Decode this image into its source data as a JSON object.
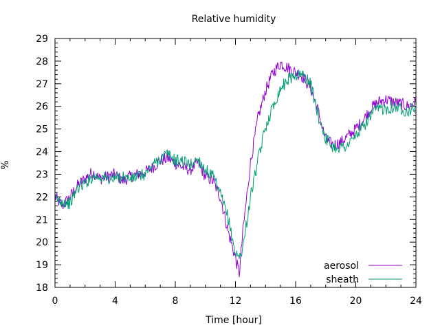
{
  "chart_data": {
    "type": "line",
    "title": "Relative humidity",
    "xlabel": "Time [hour]",
    "ylabel": "%",
    "xlim": [
      0,
      24
    ],
    "ylim": [
      18,
      29
    ],
    "xticks": [
      0,
      4,
      8,
      12,
      16,
      20,
      24
    ],
    "yticks": [
      18,
      19,
      20,
      21,
      22,
      23,
      24,
      25,
      26,
      27,
      28,
      29
    ],
    "grid": false,
    "legend": "bottom-right",
    "series": [
      {
        "name": "aerosol",
        "color": "#9400d3",
        "x": [
          0,
          0.5,
          1,
          1.5,
          2,
          2.5,
          3,
          3.5,
          4,
          4.5,
          5,
          5.5,
          6,
          6.5,
          7,
          7.5,
          8,
          8.5,
          9,
          9.5,
          10,
          10.5,
          11,
          11.5,
          12,
          12.25,
          12.5,
          13,
          13.5,
          14,
          14.5,
          15,
          15.5,
          16,
          16.5,
          17,
          17.5,
          18,
          18.5,
          19,
          19.5,
          20,
          20.5,
          21,
          21.5,
          22,
          22.5,
          23,
          23.5,
          24
        ],
        "values": [
          22.0,
          21.6,
          22.0,
          22.5,
          22.8,
          23.1,
          22.8,
          22.9,
          23.0,
          22.7,
          22.9,
          23.0,
          23.1,
          23.3,
          23.6,
          23.7,
          23.5,
          23.3,
          23.2,
          23.5,
          22.9,
          22.7,
          22.0,
          20.5,
          19.3,
          18.6,
          20.5,
          23.5,
          25.5,
          26.7,
          27.5,
          27.9,
          27.7,
          27.5,
          27.3,
          26.8,
          25.8,
          24.5,
          24.3,
          24.4,
          24.7,
          25.0,
          25.4,
          25.9,
          26.2,
          26.3,
          26.2,
          26.1,
          26.0,
          26.2
        ]
      },
      {
        "name": "sheath",
        "color": "#009e73",
        "x": [
          0,
          0.5,
          1,
          1.5,
          2,
          2.5,
          3,
          3.5,
          4,
          4.5,
          5,
          5.5,
          6,
          6.5,
          7,
          7.5,
          8,
          8.5,
          9,
          9.5,
          10,
          10.5,
          11,
          11.5,
          12,
          12.25,
          12.5,
          13,
          13.5,
          14,
          14.5,
          15,
          15.5,
          16,
          16.5,
          17,
          17.5,
          18,
          18.5,
          19,
          19.5,
          20,
          20.5,
          21,
          21.5,
          22,
          22.5,
          23,
          23.5,
          24
        ],
        "values": [
          21.9,
          21.8,
          21.7,
          22.4,
          22.6,
          22.9,
          22.9,
          22.8,
          22.8,
          22.9,
          22.8,
          22.9,
          23.0,
          23.4,
          23.7,
          23.9,
          23.6,
          23.6,
          23.4,
          23.7,
          23.2,
          22.9,
          22.1,
          21.1,
          19.5,
          19.3,
          19.8,
          22.0,
          23.6,
          25.1,
          26.0,
          26.8,
          27.2,
          27.4,
          27.4,
          27.0,
          25.6,
          24.6,
          24.2,
          24.2,
          24.3,
          24.7,
          25.1,
          25.6,
          25.9,
          25.9,
          26.0,
          25.9,
          25.8,
          26.0
        ]
      }
    ]
  }
}
